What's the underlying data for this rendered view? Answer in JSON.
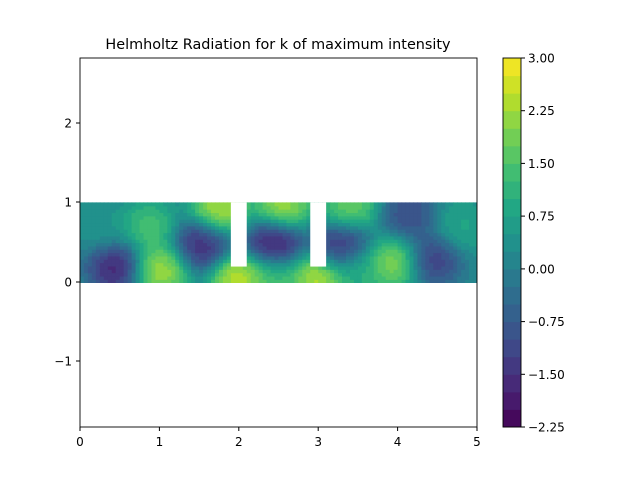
{
  "chart_data": {
    "type": "heatmap",
    "title": "Helmholtz Radiation for k of maximum intensity",
    "xlabel": "",
    "ylabel": "",
    "xlim": [
      0,
      5
    ],
    "ylim": [
      -1.8,
      2.8
    ],
    "x_ticks": [
      "0",
      "1",
      "2",
      "3",
      "4",
      "5"
    ],
    "y_ticks": [
      "−1",
      "0",
      "1",
      "2"
    ],
    "domain": {
      "x": [
        0,
        5
      ],
      "y": [
        0,
        1
      ]
    },
    "obstacles": [
      {
        "x": [
          1.9,
          2.1
        ],
        "y": [
          0.2,
          1.0
        ]
      },
      {
        "x": [
          2.9,
          3.1
        ],
        "y": [
          0.2,
          1.0
        ]
      }
    ],
    "colorbar": {
      "min": -2.25,
      "max": 3.0,
      "levels": 21,
      "colormap": "viridis",
      "tick_labels": [
        "3.00",
        "2.25",
        "1.50",
        "0.75",
        "0.00",
        "−0.75",
        "−1.50",
        "−2.25"
      ]
    },
    "features": [
      {
        "x": 0.45,
        "y": 0.2,
        "value": -2.0
      },
      {
        "x": 0.3,
        "y": 0.7,
        "value": 0.5
      },
      {
        "x": 0.85,
        "y": 0.7,
        "value": 1.6
      },
      {
        "x": 1.0,
        "y": 0.15,
        "value": 2.6
      },
      {
        "x": 1.55,
        "y": 0.5,
        "value": -1.9
      },
      {
        "x": 1.75,
        "y": 0.9,
        "value": 2.8
      },
      {
        "x": 2.0,
        "y": 0.05,
        "value": 2.9
      },
      {
        "x": 2.45,
        "y": 0.5,
        "value": -2.2
      },
      {
        "x": 2.55,
        "y": 0.95,
        "value": 2.6
      },
      {
        "x": 2.45,
        "y": 0.05,
        "value": 1.5
      },
      {
        "x": 3.0,
        "y": 0.05,
        "value": 2.8
      },
      {
        "x": 3.3,
        "y": 0.45,
        "value": -1.8
      },
      {
        "x": 3.4,
        "y": 0.95,
        "value": 2.0
      },
      {
        "x": 3.5,
        "y": 0.15,
        "value": 1.2
      },
      {
        "x": 3.95,
        "y": 0.25,
        "value": 2.3
      },
      {
        "x": 4.15,
        "y": 0.85,
        "value": -1.2
      },
      {
        "x": 4.45,
        "y": 0.3,
        "value": -1.5
      },
      {
        "x": 4.8,
        "y": 0.7,
        "value": 0.9
      }
    ]
  }
}
